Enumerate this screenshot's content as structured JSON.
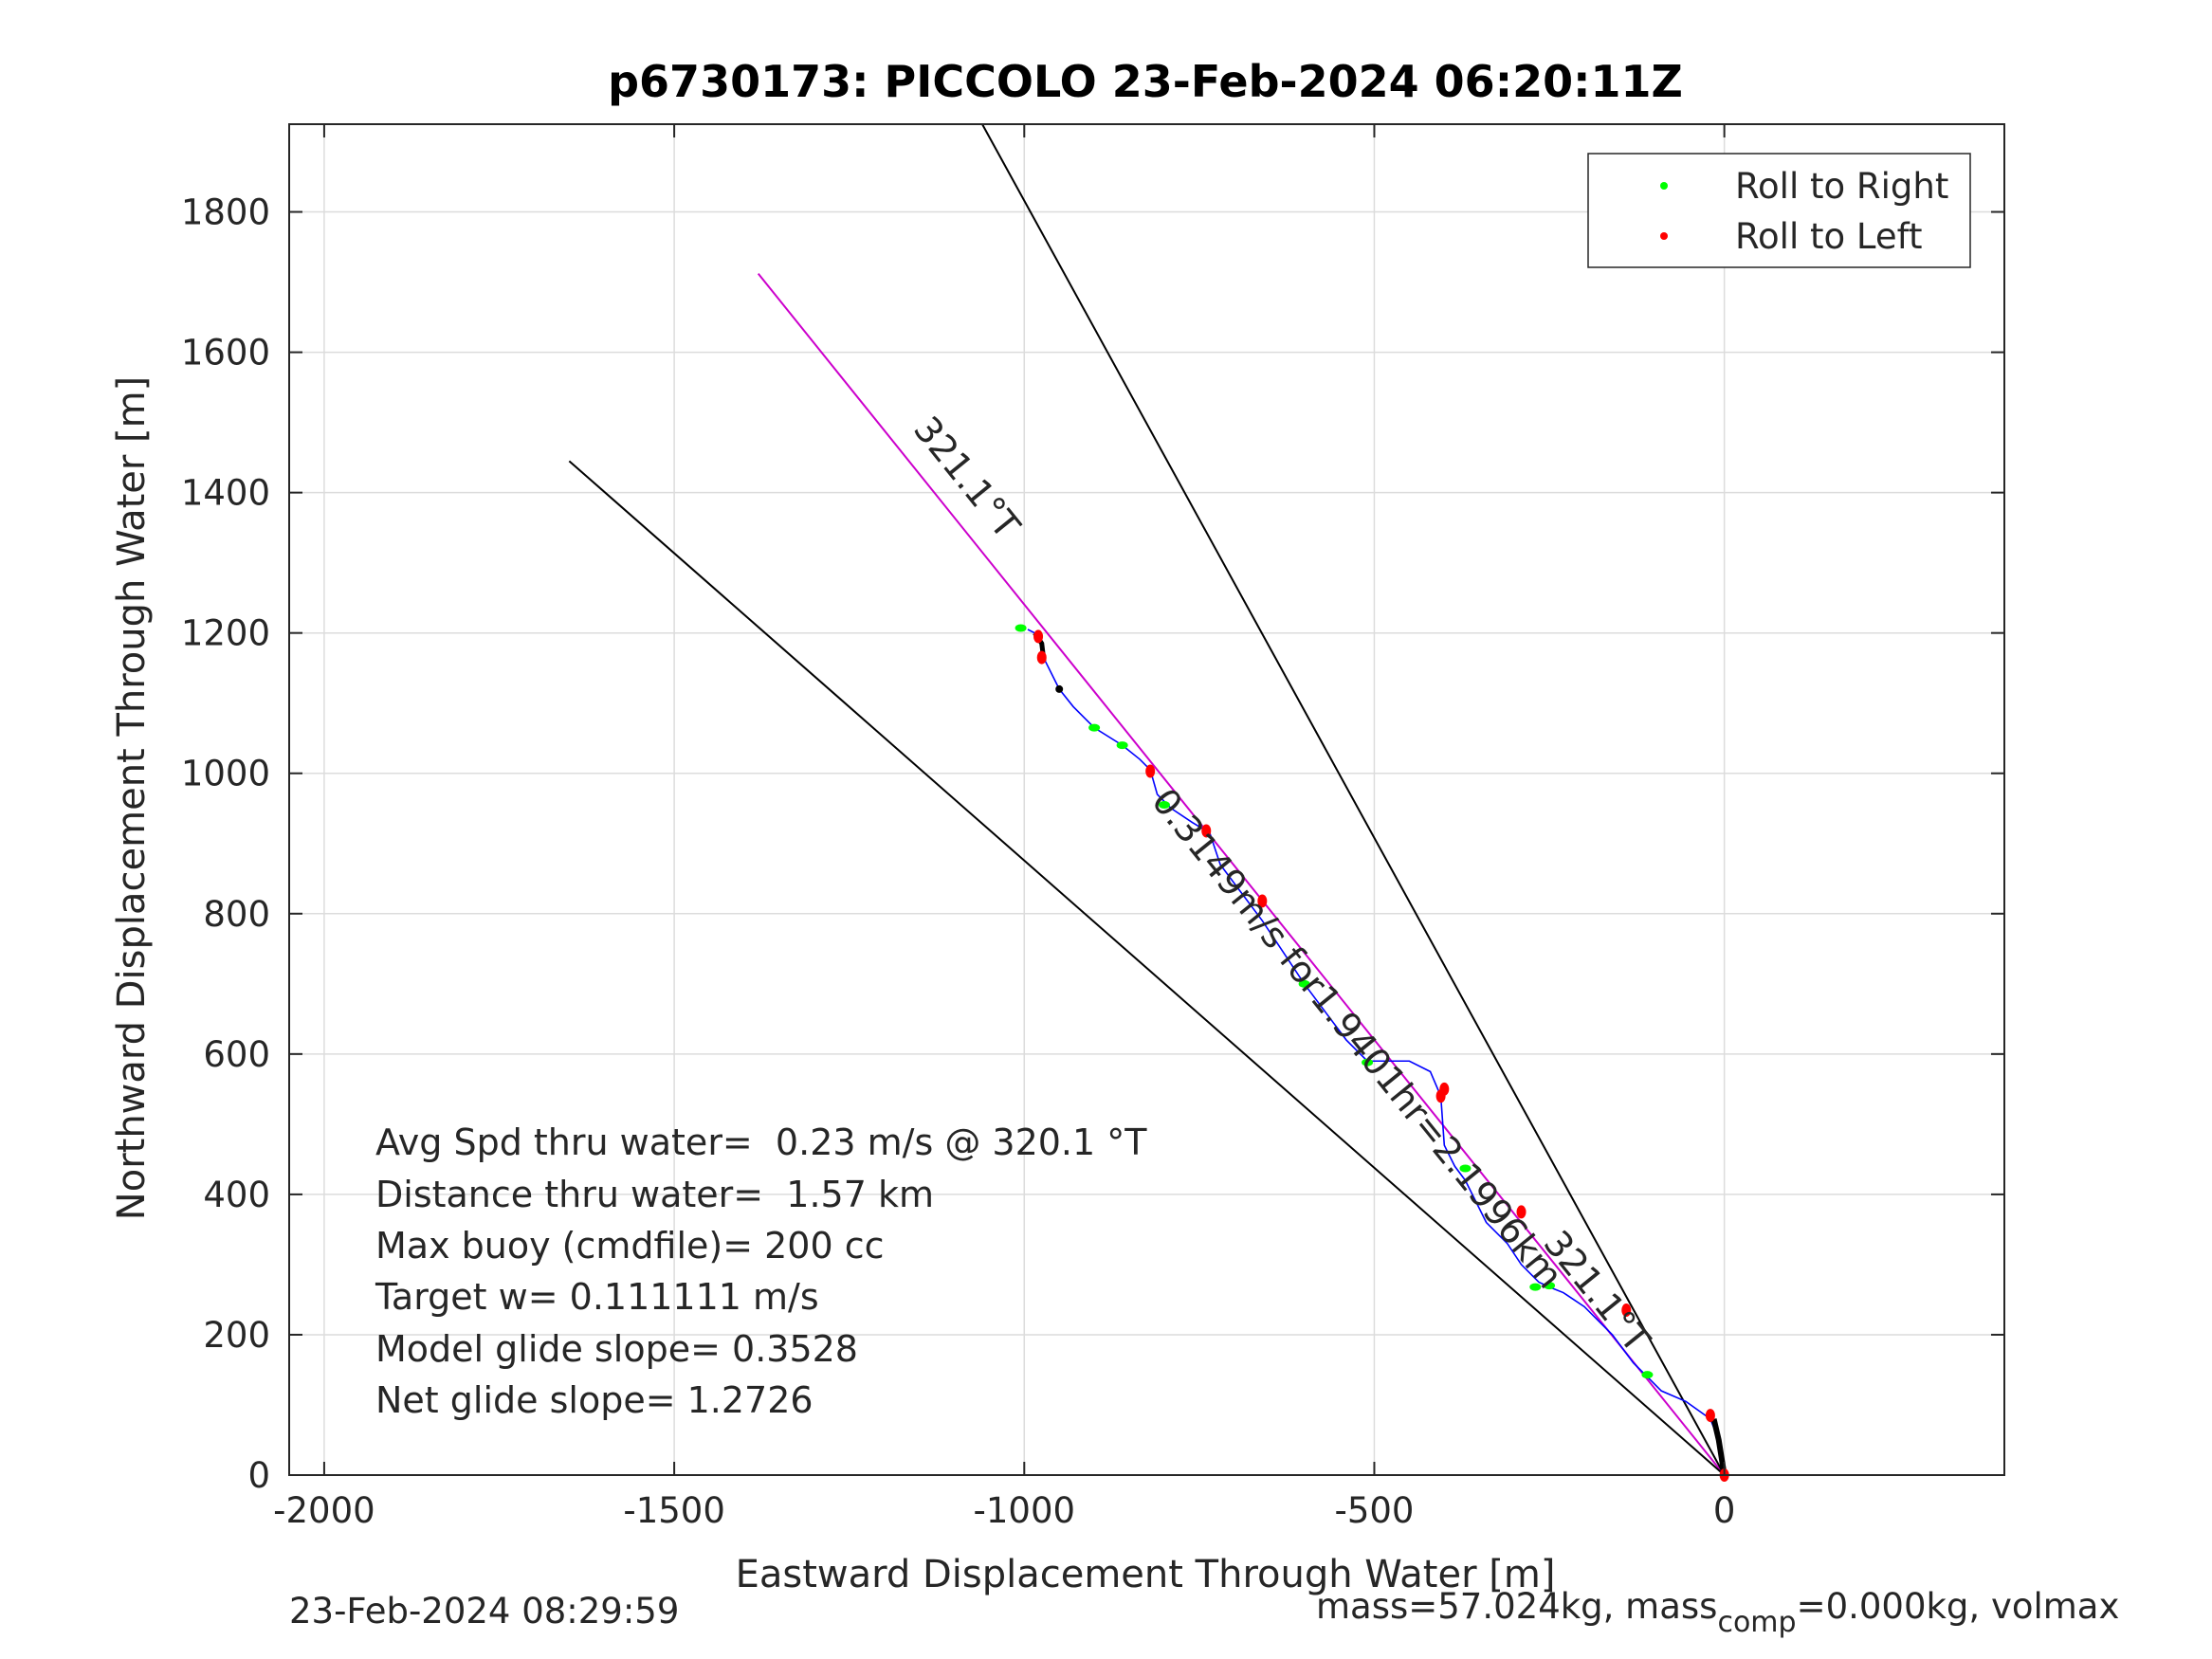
{
  "chart_data": {
    "type": "line",
    "title": "p6730173: PICCOLO 23-Feb-2024 06:20:11Z",
    "xlabel": "Eastward Displacement Through Water [m]",
    "ylabel": "Northward Displacement Through Water [m]",
    "xlim": [
      -2050,
      400
    ],
    "ylim": [
      0,
      1925
    ],
    "xticks": [
      -2000,
      -1500,
      -1000,
      -500,
      0
    ],
    "xtick_labels": [
      "-2000",
      "-1500",
      "-1000",
      "-500",
      "0"
    ],
    "yticks": [
      0,
      200,
      400,
      600,
      800,
      1000,
      1200,
      1400,
      1600,
      1800
    ],
    "ytick_labels": [
      "0",
      "200",
      "400",
      "600",
      "800",
      "1000",
      "1200",
      "1400",
      "1600",
      "1800"
    ],
    "grid": true,
    "legend_position": "top-right",
    "legend": [
      {
        "label": "Roll to Right",
        "color": "#00ff00"
      },
      {
        "label": "Roll to Left",
        "color": "#ff0000"
      }
    ],
    "reference_lines": [
      {
        "name": "course-line-magenta",
        "color": "#cc00cc",
        "x": [
          0,
          -1380
        ],
        "y": [
          0,
          1712
        ]
      },
      {
        "name": "bound-line-right",
        "color": "#000000",
        "x": [
          0,
          -1060
        ],
        "y": [
          0,
          1925
        ]
      },
      {
        "name": "bound-line-left",
        "color": "#000000",
        "x": [
          0,
          -1650
        ],
        "y": [
          0,
          1445
        ]
      }
    ],
    "track": {
      "color": "#0000ff",
      "x": [
        0,
        -8,
        -20,
        -55,
        -90,
        -110,
        -130,
        -160,
        -200,
        -230,
        -250,
        -265,
        -290,
        -310,
        -340,
        -370,
        -385,
        -400,
        -405,
        -420,
        -450,
        -490,
        -510,
        -540,
        -570,
        -600,
        -620,
        -660,
        -690,
        -720,
        -735,
        -760,
        -790,
        -810,
        -820,
        -835,
        -860,
        -900,
        -930,
        -950,
        -970,
        -975,
        -985,
        -995
      ],
      "y": [
        0,
        50,
        80,
        105,
        120,
        140,
        160,
        200,
        240,
        260,
        268,
        275,
        300,
        330,
        360,
        420,
        440,
        470,
        540,
        575,
        590,
        590,
        590,
        620,
        660,
        700,
        730,
        790,
        830,
        870,
        915,
        930,
        950,
        970,
        1005,
        1020,
        1040,
        1065,
        1095,
        1120,
        1160,
        1185,
        1200,
        1205
      ]
    },
    "roll_right_points": {
      "color": "#00ff00",
      "x": [
        -110,
        -250,
        -270,
        -370,
        -510,
        -600,
        -800,
        -860,
        -900,
        -1005
      ],
      "y": [
        143,
        270,
        268,
        437,
        588,
        700,
        955,
        1040,
        1065,
        1207
      ]
    },
    "roll_left_points": {
      "color": "#ff0000",
      "x": [
        0,
        -20,
        -140,
        -290,
        -400,
        -405,
        -660,
        -740,
        -820,
        -975,
        -980
      ],
      "y": [
        0,
        85,
        235,
        375,
        550,
        540,
        818,
        918,
        1003,
        1165,
        1195
      ]
    },
    "annotations": [
      {
        "text": "321.1°T",
        "x": -1160,
        "y": 1490,
        "angle": 51.1
      },
      {
        "text": "0.3149m/s for1.9401hr=2.1996km",
        "x": -820,
        "y": 960,
        "angle": 51.1
      },
      {
        "text": "321.1°T",
        "x": -260,
        "y": 330,
        "angle": 51.1
      }
    ],
    "stats": [
      "Avg Spd thru water=  0.23 m/s @ 320.1 °T",
      "Distance thru water=  1.57 km",
      "Max buoy (cmdfile)= 200 cc",
      "Target w= 0.111111 m/s",
      "Model glide slope= 0.3528",
      "Net glide slope= 1.2726"
    ]
  },
  "footer": {
    "timestamp": "23-Feb-2024 08:29:59",
    "mass_prefix": "mass=57.024kg, mass",
    "mass_sub": "comp",
    "mass_suffix": "=0.000kg, volmax"
  }
}
